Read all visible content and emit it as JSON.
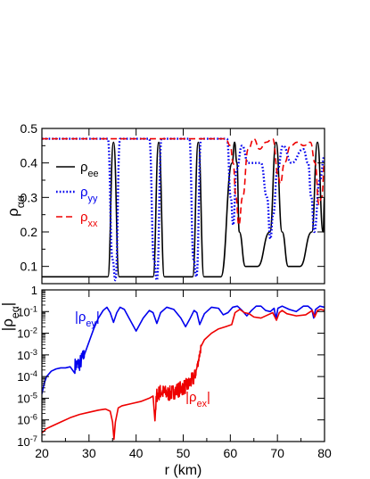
{
  "colors": {
    "ee": "#000000",
    "yy": "#0000ee",
    "xx": "#ee0000",
    "ey": "#0000ee",
    "ex": "#ee0000"
  },
  "chart_data": [
    {
      "type": "line",
      "ylabel": "ρ",
      "ylabel_sub": "αα",
      "xlim": [
        20,
        80
      ],
      "ylim": [
        0.05,
        0.5
      ],
      "yticks": [
        0.1,
        0.2,
        0.3,
        0.4,
        0.5
      ],
      "ytick_labels": [
        "0.1",
        "0.2",
        "0.3",
        "0.4",
        "0.5"
      ],
      "legend": [
        {
          "key": "ee",
          "base": "ρ",
          "sub": "ee",
          "style": "solid"
        },
        {
          "key": "yy",
          "base": "ρ",
          "sub": "yy",
          "style": "dotted"
        },
        {
          "key": "xx",
          "base": "ρ",
          "sub": "xx",
          "style": "dashed"
        }
      ],
      "series": [
        {
          "name": "ρee",
          "key": "ee",
          "style": "solid",
          "x": [
            20,
            34.0,
            35.2,
            36.4,
            37.6,
            40.6,
            43.6,
            44.8,
            46.0,
            47.2,
            49.6,
            52.0,
            53.2,
            54.4,
            55.6,
            58.0,
            60.4,
            60.9,
            61.4,
            61.9,
            63.2,
            65.8,
            68.4,
            69.7,
            71.0,
            72.3,
            74.8,
            77.3,
            78.5,
            79.7,
            80
          ],
          "y": [
            0.07,
            0.07,
            0.46,
            0.07,
            0.07,
            0.07,
            0.07,
            0.46,
            0.07,
            0.07,
            0.07,
            0.07,
            0.46,
            0.07,
            0.07,
            0.07,
            0.4,
            0.46,
            0.4,
            0.2,
            0.1,
            0.1,
            0.2,
            0.46,
            0.2,
            0.1,
            0.1,
            0.2,
            0.46,
            0.2,
            0.3
          ]
        },
        {
          "name": "ρyy",
          "key": "yy",
          "style": "dotted",
          "x": [
            20,
            34.0,
            35.0,
            35.6,
            36.6,
            42.8,
            43.8,
            44.4,
            45.4,
            51.3,
            52.2,
            52.8,
            53.8,
            59.3,
            60.1,
            60.6,
            61.3,
            62.5,
            63.8,
            66.5,
            67.8,
            68.5,
            69.1,
            70.0,
            71.2,
            73.0,
            75.5,
            76.5,
            77.2,
            77.8,
            79.0,
            80
          ],
          "y": [
            0.47,
            0.47,
            0.12,
            0.06,
            0.47,
            0.47,
            0.12,
            0.06,
            0.47,
            0.47,
            0.12,
            0.07,
            0.47,
            0.47,
            0.3,
            0.22,
            0.38,
            0.45,
            0.4,
            0.4,
            0.3,
            0.18,
            0.25,
            0.38,
            0.45,
            0.4,
            0.44,
            0.4,
            0.3,
            0.2,
            0.35,
            0.42
          ]
        },
        {
          "name": "ρxx",
          "key": "xx",
          "style": "dashed",
          "x": [
            20,
            59.0,
            60.0,
            60.6,
            61.2,
            61.8,
            62.6,
            63.8,
            65.0,
            66.2,
            67.6,
            69.0,
            70.2,
            70.6,
            71.5,
            72.8,
            74.2,
            75.6,
            77.0,
            78.0,
            78.8,
            79.4,
            80
          ],
          "y": [
            0.47,
            0.47,
            0.45,
            0.4,
            0.3,
            0.22,
            0.3,
            0.44,
            0.47,
            0.44,
            0.46,
            0.47,
            0.36,
            0.34,
            0.4,
            0.45,
            0.46,
            0.45,
            0.46,
            0.4,
            0.28,
            0.3,
            0.4
          ]
        }
      ]
    },
    {
      "type": "line",
      "xlabel": "r (km)",
      "ylabel": "|ρ",
      "ylabel_sub": "eα",
      "ylabel_end": "|",
      "log_y": true,
      "xlim": [
        20,
        80
      ],
      "ylim_exp": [
        -7,
        0
      ],
      "xticks": [
        20,
        30,
        40,
        50,
        60,
        70,
        80
      ],
      "xtick_labels": [
        "20",
        "30",
        "40",
        "50",
        "60",
        "70",
        "80"
      ],
      "ytick_labels": [
        {
          "exp": 0,
          "base": "1",
          "sup": ""
        },
        {
          "exp": -1,
          "base": "10",
          "sup": "-1"
        },
        {
          "exp": -2,
          "base": "10",
          "sup": "-2"
        },
        {
          "exp": -3,
          "base": "10",
          "sup": "-3"
        },
        {
          "exp": -4,
          "base": "10",
          "sup": "-4"
        },
        {
          "exp": -5,
          "base": "10",
          "sup": "-5"
        },
        {
          "exp": -6,
          "base": "10",
          "sup": "-6"
        },
        {
          "exp": -7,
          "base": "10",
          "sup": "-7"
        }
      ],
      "annotations": [
        {
          "key": "ey",
          "base": "|ρ",
          "sub": "ey",
          "end": "|",
          "x": 27.0,
          "y_exp": -1.45
        },
        {
          "key": "ex",
          "base": "|ρ",
          "sub": "ex",
          "end": "|",
          "x": 50.5,
          "y_exp": -5.15
        }
      ],
      "series": [
        {
          "name": "|ρey|",
          "key": "ey",
          "noise": [
            [
              26.5,
              28.2,
              0.35
            ]
          ],
          "x": [
            20,
            20.5,
            21,
            22,
            23,
            24,
            25,
            26,
            27,
            28,
            29,
            30,
            31,
            32,
            33,
            33.8,
            34.5,
            35.2,
            35.9,
            36.6,
            37.5,
            38.5,
            40,
            41.5,
            42.8,
            43.6,
            44.4,
            45.2,
            46.5,
            48,
            49.5,
            50.5,
            51.5,
            52.3,
            52.9,
            53.5,
            54.5,
            56,
            57.5,
            58.5,
            59.5,
            60.5,
            61.5,
            62.5,
            63.5,
            64.5,
            65.5,
            66.5,
            67.5,
            68.5,
            69.3,
            69.7,
            70.1,
            71,
            72.5,
            74,
            75.5,
            76.5,
            77.3,
            77.7,
            78.1,
            79,
            80
          ],
          "y": [
            -4.8,
            -4.3,
            -4.0,
            -3.75,
            -3.65,
            -3.6,
            -3.6,
            -3.55,
            -3.5,
            -3.4,
            -3.0,
            -2.4,
            -1.8,
            -1.3,
            -0.95,
            -0.8,
            -1.05,
            -1.5,
            -1.05,
            -0.8,
            -0.9,
            -1.3,
            -1.9,
            -1.3,
            -0.95,
            -1.05,
            -1.55,
            -1.05,
            -0.8,
            -0.9,
            -1.3,
            -1.7,
            -1.3,
            -0.95,
            -1.05,
            -1.6,
            -1.1,
            -0.8,
            -0.85,
            -1.15,
            -1.05,
            -0.8,
            -0.75,
            -0.95,
            -1.2,
            -0.95,
            -0.75,
            -0.75,
            -0.95,
            -1.0,
            -0.85,
            -1.35,
            -0.85,
            -0.75,
            -0.9,
            -1.0,
            -0.75,
            -0.75,
            -0.9,
            -1.3,
            -0.9,
            -0.75,
            -0.8
          ]
        },
        {
          "name": "|ρex|",
          "key": "ex",
          "noise": [
            [
              43.8,
              52.0,
              0.35
            ],
            [
              52.0,
              53.5,
              0.2
            ]
          ],
          "x": [
            20,
            21,
            22,
            24,
            26,
            28,
            30,
            32,
            33.5,
            34.5,
            35.0,
            35.3,
            35.6,
            36.2,
            37,
            39,
            41,
            42.8,
            43.6,
            44.0,
            44.4,
            45.2,
            47,
            49,
            51,
            52.5,
            53.2,
            53.8,
            54.5,
            56,
            57.5,
            59,
            60.3,
            61,
            62,
            63,
            64,
            65,
            66.5,
            68,
            69,
            69.8,
            70.4,
            71,
            72,
            74,
            76,
            77.4,
            77.9,
            78.5,
            79.2,
            80
          ],
          "y": [
            -6.6,
            -6.4,
            -6.3,
            -6.1,
            -5.9,
            -5.75,
            -5.65,
            -5.55,
            -5.5,
            -5.6,
            -6.1,
            -6.9,
            -6.1,
            -5.45,
            -5.35,
            -5.25,
            -5.15,
            -5.0,
            -4.9,
            -5.8,
            -4.85,
            -4.7,
            -4.8,
            -4.6,
            -4.4,
            -4.0,
            -3.3,
            -2.6,
            -2.3,
            -2.0,
            -1.8,
            -1.7,
            -1.6,
            -1.05,
            -0.9,
            -1.05,
            -1.1,
            -1.25,
            -1.3,
            -1.15,
            -1.05,
            -1.4,
            -1.05,
            -0.95,
            -1.1,
            -1.2,
            -1.15,
            -0.95,
            -1.25,
            -0.95,
            -0.9,
            -0.95
          ]
        }
      ]
    }
  ]
}
